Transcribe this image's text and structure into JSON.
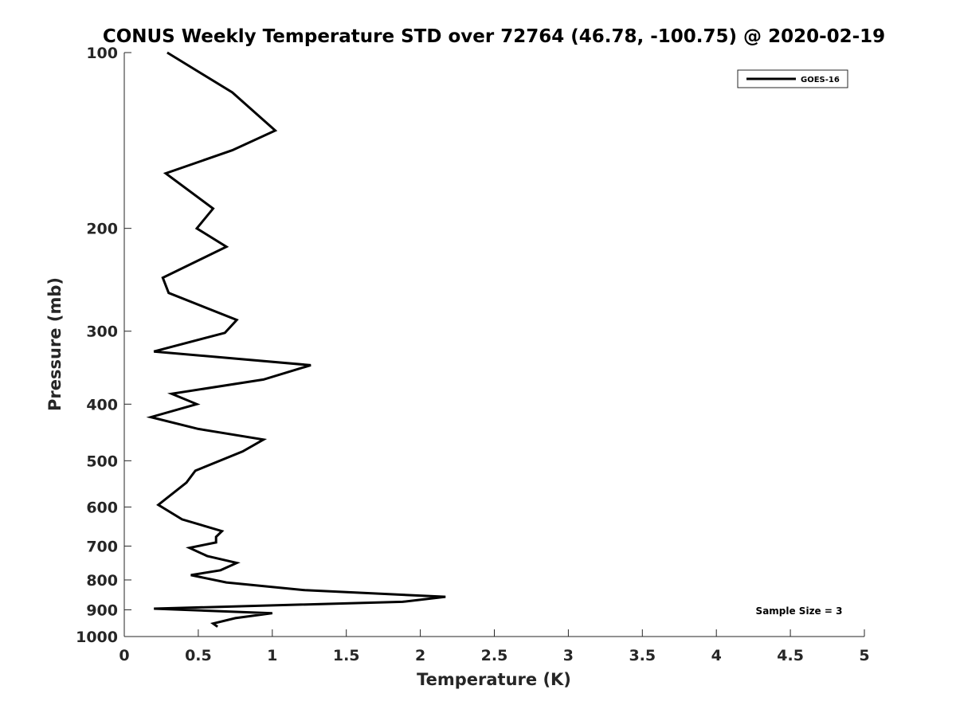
{
  "chart_data": {
    "type": "line",
    "title": "CONUS Weekly Temperature STD over 72764 (46.78, -100.75) @ 2020-02-19",
    "xlabel": "Temperature (K)",
    "ylabel": "Pressure (mb)",
    "xlim": [
      0,
      5
    ],
    "ylim": [
      100,
      1000
    ],
    "y_scale": "log",
    "y_reversed": true,
    "x_ticks": [
      0,
      0.5,
      1,
      1.5,
      2,
      2.5,
      3,
      3.5,
      4,
      4.5,
      5
    ],
    "x_tick_labels": [
      "0",
      "0.5",
      "1",
      "1.5",
      "2",
      "2.5",
      "3",
      "3.5",
      "4",
      "4.5",
      "5"
    ],
    "y_ticks": [
      100,
      200,
      300,
      400,
      500,
      600,
      700,
      800,
      900,
      1000
    ],
    "y_tick_labels": [
      "100",
      "200",
      "300",
      "400",
      "500",
      "600",
      "700",
      "800",
      "900",
      "1000"
    ],
    "grid": false,
    "legend_position": "top-right",
    "annotation": "Sample Size = 3",
    "line_color": "#000000",
    "series": [
      {
        "name": "GOES-16",
        "points": [
          [
            0.29,
            100
          ],
          [
            0.73,
            117
          ],
          [
            1.02,
            136
          ],
          [
            0.73,
            147
          ],
          [
            0.28,
            161
          ],
          [
            0.6,
            185
          ],
          [
            0.49,
            200
          ],
          [
            0.69,
            215
          ],
          [
            0.26,
            243
          ],
          [
            0.3,
            258
          ],
          [
            0.76,
            287
          ],
          [
            0.68,
            302
          ],
          [
            0.2,
            325
          ],
          [
            1.26,
            343
          ],
          [
            0.94,
            363
          ],
          [
            0.32,
            384
          ],
          [
            0.49,
            400
          ],
          [
            0.18,
            421
          ],
          [
            0.5,
            441
          ],
          [
            0.94,
            460
          ],
          [
            0.8,
            482
          ],
          [
            0.48,
            520
          ],
          [
            0.42,
            545
          ],
          [
            0.23,
            595
          ],
          [
            0.39,
            630
          ],
          [
            0.66,
            660
          ],
          [
            0.62,
            675
          ],
          [
            0.62,
            690
          ],
          [
            0.44,
            705
          ],
          [
            0.56,
            728
          ],
          [
            0.76,
            748
          ],
          [
            0.65,
            770
          ],
          [
            0.45,
            785
          ],
          [
            0.69,
            808
          ],
          [
            1.22,
            833
          ],
          [
            2.17,
            855
          ],
          [
            1.88,
            872
          ],
          [
            0.2,
            896
          ],
          [
            1.0,
            912
          ],
          [
            0.75,
            930
          ],
          [
            0.6,
            950
          ],
          [
            0.63,
            962
          ]
        ]
      }
    ]
  }
}
